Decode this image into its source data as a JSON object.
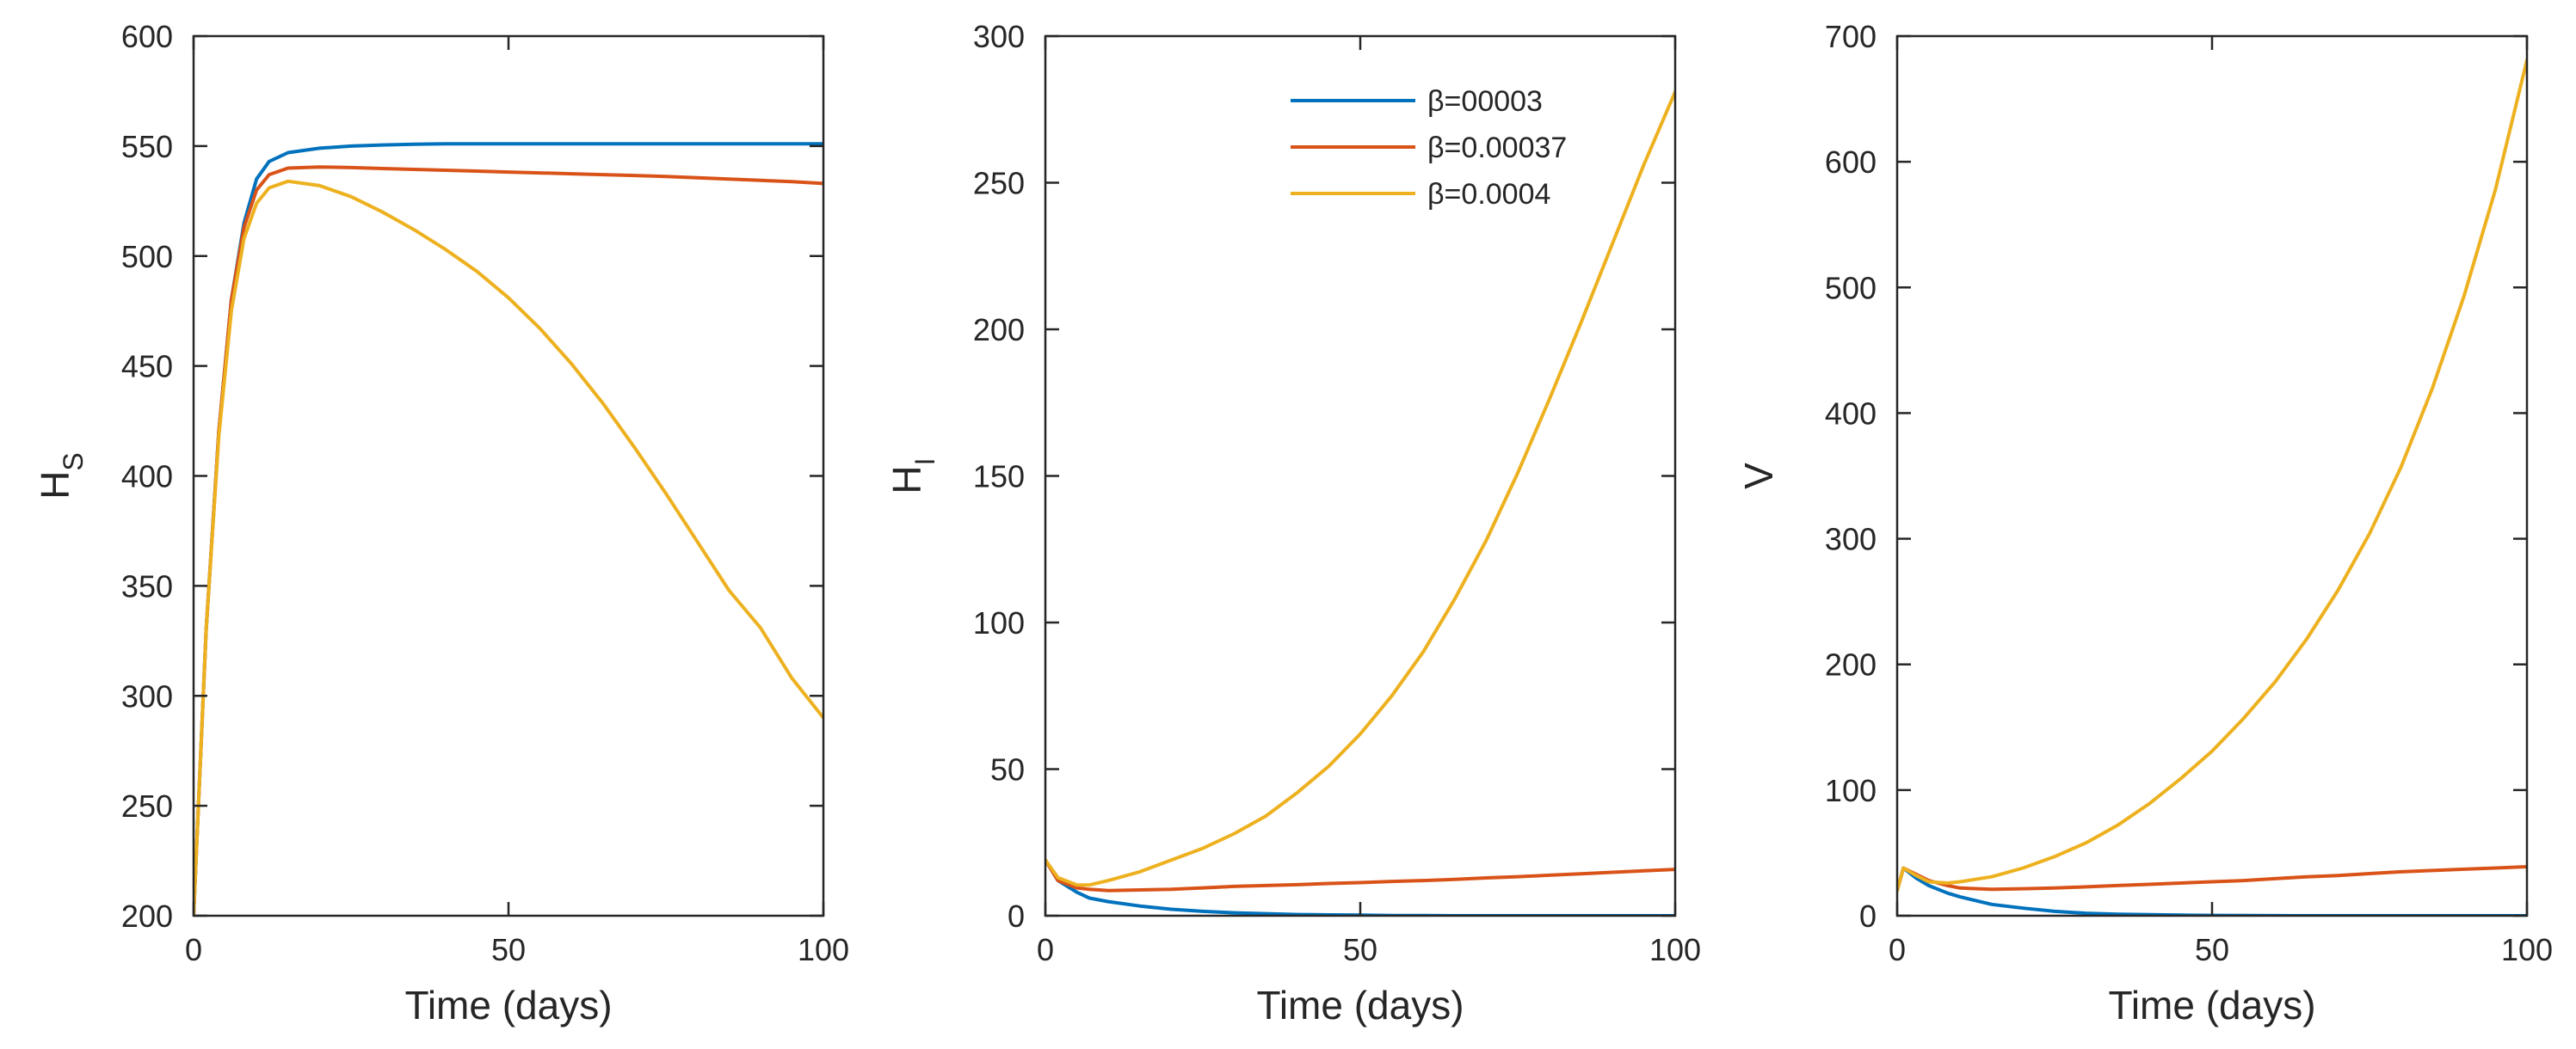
{
  "chart_data": [
    {
      "type": "line",
      "id": "hs",
      "title": "",
      "xlabel": "Time (days)",
      "ylabel": "H",
      "ylabel_sub": "S",
      "xlim": [
        0,
        100
      ],
      "ylim": [
        200,
        600
      ],
      "xticks": [
        0,
        50,
        100
      ],
      "yticks": [
        200,
        250,
        300,
        350,
        400,
        450,
        500,
        550,
        600
      ],
      "x": [
        0,
        2,
        4,
        6,
        8,
        10,
        12,
        15,
        20,
        25,
        30,
        35,
        40,
        45,
        50,
        55,
        60,
        65,
        70,
        75,
        80,
        85,
        90,
        95,
        100
      ],
      "series": [
        {
          "name": "β=00003",
          "color": "#0072BD",
          "values": [
            200,
            330,
            420,
            480,
            515,
            535,
            543,
            547,
            549,
            550,
            550.5,
            550.8,
            551,
            551,
            551,
            551,
            551,
            551,
            551,
            551,
            551,
            551,
            551,
            551,
            551
          ]
        },
        {
          "name": "β=0.00037",
          "color": "#D95319",
          "values": [
            200,
            330,
            420,
            480,
            513,
            530,
            537,
            540,
            540.5,
            540.2,
            539.8,
            539.4,
            539,
            538.6,
            538.2,
            537.8,
            537.4,
            537,
            536.6,
            536.2,
            535.6,
            535,
            534.4,
            533.8,
            533
          ]
        },
        {
          "name": "β=0.0004",
          "color": "#EDB120",
          "values": [
            200,
            330,
            418,
            475,
            508,
            524,
            531,
            534,
            532,
            527,
            520,
            512,
            503,
            493,
            481,
            467,
            451,
            433,
            413,
            392,
            370,
            348,
            331,
            308,
            290
          ]
        }
      ]
    },
    {
      "type": "line",
      "id": "hi",
      "title": "",
      "xlabel": "Time (days)",
      "ylabel": "H",
      "ylabel_sub": "I",
      "xlim": [
        0,
        100
      ],
      "ylim": [
        0,
        300
      ],
      "xticks": [
        0,
        50,
        100
      ],
      "yticks": [
        0,
        50,
        100,
        150,
        200,
        250,
        300
      ],
      "legend": {
        "location": "top-right",
        "entries": [
          "β=00003",
          "β=0.00037",
          "β=0.0004"
        ]
      },
      "x": [
        0,
        2,
        5,
        7,
        10,
        15,
        20,
        25,
        30,
        35,
        40,
        45,
        50,
        55,
        60,
        65,
        70,
        75,
        80,
        85,
        90,
        95,
        100
      ],
      "series": [
        {
          "name": "β=00003",
          "color": "#0072BD",
          "values": [
            19,
            12,
            8,
            6,
            4.8,
            3.3,
            2.2,
            1.5,
            1,
            0.7,
            0.4,
            0.3,
            0.2,
            0.1,
            0.1,
            0,
            0,
            0,
            0,
            0,
            0,
            0,
            0
          ]
        },
        {
          "name": "β=0.00037",
          "color": "#D95319",
          "values": [
            19,
            12,
            9.5,
            9,
            8.6,
            8.8,
            9,
            9.5,
            10,
            10.3,
            10.6,
            11,
            11.3,
            11.7,
            12,
            12.4,
            12.9,
            13.3,
            13.8,
            14.3,
            14.8,
            15.3,
            15.8
          ]
        },
        {
          "name": "β=0.0004",
          "color": "#EDB120",
          "values": [
            19,
            13,
            10.5,
            10.5,
            12,
            15,
            19,
            23,
            28,
            34,
            42,
            51,
            62,
            75,
            90,
            108,
            128,
            151,
            176,
            202,
            229,
            256,
            281
          ]
        }
      ]
    },
    {
      "type": "line",
      "id": "v",
      "title": "",
      "xlabel": "Time (days)",
      "ylabel": "V",
      "ylabel_sub": "",
      "xlim": [
        0,
        100
      ],
      "ylim": [
        0,
        700
      ],
      "xticks": [
        0,
        50,
        100
      ],
      "yticks": [
        0,
        100,
        200,
        300,
        400,
        500,
        600,
        700
      ],
      "x": [
        0,
        1,
        3,
        5,
        8,
        10,
        15,
        20,
        25,
        30,
        35,
        40,
        45,
        50,
        55,
        60,
        65,
        70,
        75,
        80,
        85,
        90,
        95,
        100
      ],
      "series": [
        {
          "name": "β=00003",
          "color": "#0072BD",
          "values": [
            20,
            38,
            30,
            24,
            18,
            15,
            9,
            6,
            3.5,
            2,
            1.2,
            0.8,
            0.5,
            0.3,
            0.2,
            0.1,
            0,
            0,
            0,
            0,
            0,
            0,
            0,
            0
          ]
        },
        {
          "name": "β=0.00037",
          "color": "#D95319",
          "values": [
            20,
            38,
            33,
            28,
            24,
            22,
            21,
            21.5,
            22,
            23,
            24,
            25,
            26,
            27,
            28,
            29.5,
            31,
            32,
            33.5,
            35,
            36,
            37,
            38,
            39
          ]
        },
        {
          "name": "β=0.0004",
          "color": "#EDB120",
          "values": [
            20,
            38,
            32,
            27,
            26,
            27,
            31,
            38,
            47,
            58,
            72,
            89,
            109,
            131,
            157,
            186,
            220,
            259,
            304,
            357,
            420,
            493,
            578,
            681
          ]
        }
      ]
    }
  ]
}
